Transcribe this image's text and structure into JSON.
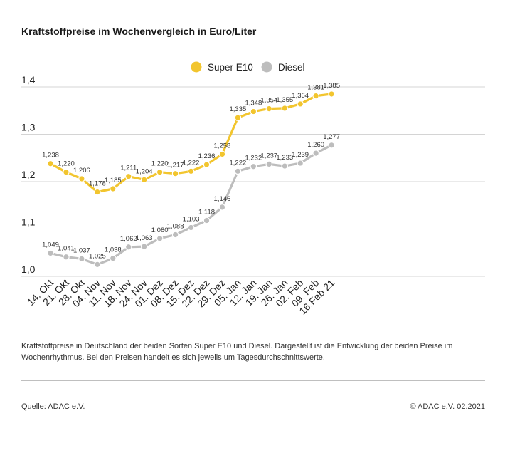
{
  "title": "Kraftstoffpreise im Wochenvergleich in Euro/Liter",
  "description": "Kraftstoffpreise in Deutschland der beiden Sorten Super E10 und Diesel. Dargestellt ist die Entwicklung der beiden Preise im Wochenrhythmus. Bei den Preisen handelt es sich jeweils um Tagesdurchschnittswerte.",
  "source": "Quelle: ADAC e.V.",
  "copyright": "© ADAC e.V. 02.2021",
  "chart_data": {
    "type": "line",
    "title": "Kraftstoffpreise im Wochenvergleich in Euro/Liter",
    "xlabel": "",
    "ylabel": "",
    "ylim": [
      1.0,
      1.4
    ],
    "yticks": [
      1.0,
      1.1,
      1.2,
      1.3,
      1.4
    ],
    "ytick_labels": [
      "1,0",
      "1,1",
      "1,2",
      "1,3",
      "1,4"
    ],
    "grid": true,
    "legend_position": "top-center",
    "categories": [
      "14. Okt",
      "21. Okt",
      "28. Okt",
      "04. Nov",
      "11. Nov",
      "18. Nov",
      "24. Nov",
      "01. Dez",
      "08. Dez",
      "15. Dez",
      "22. Dez",
      "29. Dez",
      "05. Jan",
      "12. Jan",
      "19. Jan",
      "26. Jan",
      "02. Feb",
      "09. Feb",
      "16.Feb 21"
    ],
    "series": [
      {
        "name": "Super E10",
        "color": "#f2c52e",
        "values": [
          1.238,
          1.22,
          1.206,
          1.178,
          1.185,
          1.211,
          1.204,
          1.22,
          1.217,
          1.222,
          1.236,
          1.258,
          1.335,
          1.348,
          1.354,
          1.355,
          1.364,
          1.381,
          1.385
        ],
        "labels": [
          "1,238",
          "1,220",
          "1,206",
          "1,178",
          "1,185",
          "1,211",
          "1,204",
          "1,220",
          "1,217",
          "1,222",
          "1,236",
          "1,258",
          "1,335",
          "1,348",
          "1,354",
          "1,355",
          "1,364",
          "1,381",
          "1,385"
        ]
      },
      {
        "name": "Diesel",
        "color": "#bdbdbd",
        "values": [
          1.049,
          1.041,
          1.037,
          1.025,
          1.038,
          1.062,
          1.063,
          1.08,
          1.088,
          1.103,
          1.118,
          1.146,
          1.222,
          1.232,
          1.237,
          1.233,
          1.239,
          1.26,
          1.277
        ],
        "labels": [
          "1,049",
          "1,041",
          "1,037",
          "1,025",
          "1,038",
          "1,062",
          "1,063",
          "1,080",
          "1,088",
          "1,103",
          "1,118",
          "1,146",
          "1,222",
          "1,232",
          "1,237",
          "1,233",
          "1,239",
          "1,260",
          "1,277"
        ]
      }
    ]
  }
}
